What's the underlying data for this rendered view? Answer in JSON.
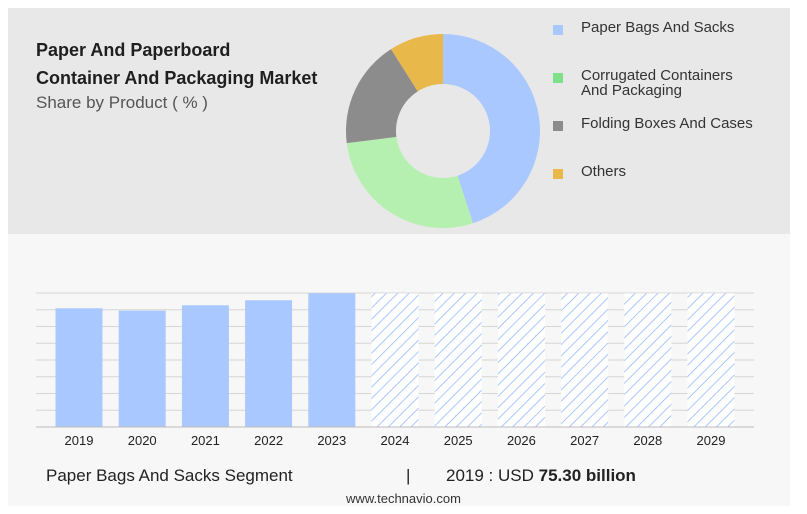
{
  "title_lines": [
    "Paper And Paperboard",
    "Container And Packaging Market"
  ],
  "subtitle": "Share by Product ( % )",
  "donut": {
    "slices": [
      {
        "label": "Paper Bags And Sacks",
        "share": 45,
        "color": "#a8c8ff"
      },
      {
        "label": "Corrugated Containers And Packaging",
        "share": 28,
        "color": "#b6f0b0"
      },
      {
        "label": "Folding Boxes And Cases",
        "share": 18,
        "color": "#8c8c8c"
      },
      {
        "label": "Others",
        "share": 9,
        "color": "#e8b84a"
      }
    ]
  },
  "legend": [
    {
      "lines": [
        "Paper Bags And Sacks"
      ],
      "color": "#a8c8ff"
    },
    {
      "lines": [
        "Corrugated Containers",
        "And Packaging"
      ],
      "color": "#7ee08a"
    },
    {
      "lines": [
        "Folding Boxes And Cases"
      ],
      "color": "#8c8c8c"
    },
    {
      "lines": [
        "Others"
      ],
      "color": "#e8b84a"
    }
  ],
  "chart_data": [
    {
      "type": "pie",
      "title": "Paper And Paperboard Container And Packaging Market",
      "subtitle": "Share by Product ( % )",
      "categories": [
        "Paper Bags And Sacks",
        "Corrugated Containers And Packaging",
        "Folding Boxes And Cases",
        "Others"
      ],
      "values": [
        45,
        28,
        18,
        9
      ]
    },
    {
      "type": "bar",
      "categories": [
        "2019",
        "2020",
        "2021",
        "2022",
        "2023",
        "2024",
        "2025",
        "2026",
        "2027",
        "2028",
        "2029"
      ],
      "values": [
        75.3,
        73.8,
        77.2,
        80.4,
        84.8,
        84.8,
        84.8,
        84.8,
        84.8,
        84.8,
        84.8
      ],
      "forecast_start": "2024",
      "ylim": [
        0,
        85
      ],
      "grid": true,
      "bar_color": "#a8c8ff"
    }
  ],
  "footer": {
    "segment": "Paper Bags And Sacks Segment",
    "divider": "|",
    "year_label": "2019 : USD",
    "value": "75.30 billion"
  },
  "source": "www.technavio.com"
}
